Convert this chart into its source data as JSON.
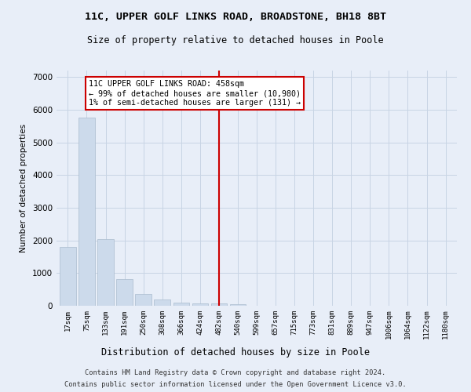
{
  "title": "11C, UPPER GOLF LINKS ROAD, BROADSTONE, BH18 8BT",
  "subtitle": "Size of property relative to detached houses in Poole",
  "xlabel": "Distribution of detached houses by size in Poole",
  "ylabel": "Number of detached properties",
  "bar_labels": [
    "17sqm",
    "75sqm",
    "133sqm",
    "191sqm",
    "250sqm",
    "308sqm",
    "366sqm",
    "424sqm",
    "482sqm",
    "540sqm",
    "599sqm",
    "657sqm",
    "715sqm",
    "773sqm",
    "831sqm",
    "889sqm",
    "947sqm",
    "1006sqm",
    "1064sqm",
    "1122sqm",
    "1180sqm"
  ],
  "bar_values": [
    1800,
    5750,
    2050,
    820,
    350,
    200,
    100,
    80,
    80,
    60,
    0,
    0,
    0,
    0,
    0,
    0,
    0,
    0,
    0,
    0,
    0
  ],
  "bar_color": "#ccdaeb",
  "bar_edge_color": "#aabcce",
  "vline_x_index": 8,
  "vline_color": "#cc0000",
  "annotation_text": "11C UPPER GOLF LINKS ROAD: 458sqm\n← 99% of detached houses are smaller (10,980)\n1% of semi-detached houses are larger (131) →",
  "annotation_box_facecolor": "#ffffff",
  "annotation_box_edgecolor": "#cc0000",
  "ylim": [
    0,
    7200
  ],
  "yticks": [
    0,
    1000,
    2000,
    3000,
    4000,
    5000,
    6000,
    7000
  ],
  "grid_color": "#c8d4e4",
  "background_color": "#e8eef8",
  "footer_line1": "Contains HM Land Registry data © Crown copyright and database right 2024.",
  "footer_line2": "Contains public sector information licensed under the Open Government Licence v3.0."
}
